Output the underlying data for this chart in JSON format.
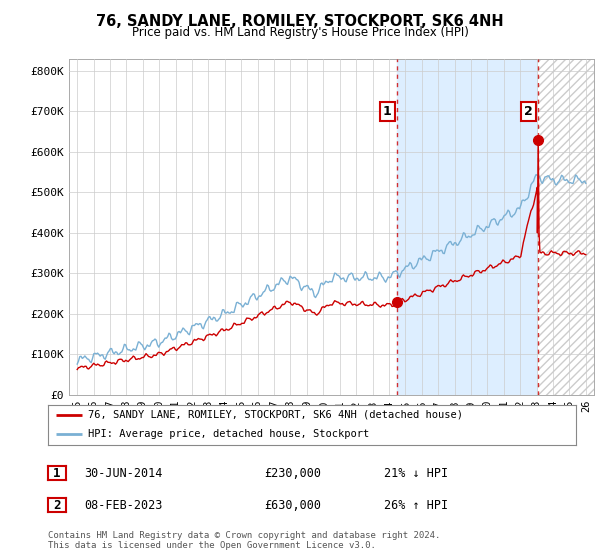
{
  "title": "76, SANDY LANE, ROMILEY, STOCKPORT, SK6 4NH",
  "subtitle": "Price paid vs. HM Land Registry's House Price Index (HPI)",
  "ylabel_ticks": [
    "£0",
    "£100K",
    "£200K",
    "£300K",
    "£400K",
    "£500K",
    "£600K",
    "£700K",
    "£800K"
  ],
  "ytick_values": [
    0,
    100000,
    200000,
    300000,
    400000,
    500000,
    600000,
    700000,
    800000
  ],
  "ylim": [
    0,
    830000
  ],
  "xlim_start": 1994.5,
  "xlim_end": 2026.5,
  "xtick_years": [
    1995,
    1996,
    1997,
    1998,
    1999,
    2000,
    2001,
    2002,
    2003,
    2004,
    2005,
    2006,
    2007,
    2008,
    2009,
    2010,
    2011,
    2012,
    2013,
    2014,
    2015,
    2016,
    2017,
    2018,
    2019,
    2020,
    2021,
    2022,
    2023,
    2024,
    2025,
    2026
  ],
  "red_line_color": "#cc0000",
  "blue_line_color": "#7ab0d4",
  "shade_color": "#ddeeff",
  "hatch_color": "#cccccc",
  "marker1_x": 2014.5,
  "marker1_y": 230000,
  "marker2_x": 2023.1,
  "marker2_y": 630000,
  "annotation1_label": "1",
  "annotation2_label": "2",
  "legend_red": "76, SANDY LANE, ROMILEY, STOCKPORT, SK6 4NH (detached house)",
  "legend_blue": "HPI: Average price, detached house, Stockport",
  "sale1_date": "30-JUN-2014",
  "sale1_price": "£230,000",
  "sale1_hpi": "21% ↓ HPI",
  "sale2_date": "08-FEB-2023",
  "sale2_price": "£630,000",
  "sale2_hpi": "26% ↑ HPI",
  "footer": "Contains HM Land Registry data © Crown copyright and database right 2024.\nThis data is licensed under the Open Government Licence v3.0.",
  "background_color": "#ffffff",
  "plot_bg_color": "#ffffff",
  "grid_color": "#cccccc"
}
